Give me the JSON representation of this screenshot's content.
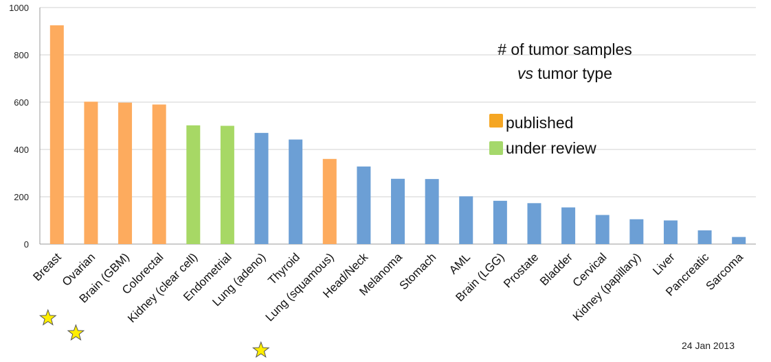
{
  "chart_data": {
    "type": "bar",
    "title_lines": [
      "# of tumor samples",
      "vs tumor type"
    ],
    "title_emphasis": "vs",
    "ylim": [
      0,
      1000
    ],
    "yticks": [
      0,
      200,
      400,
      600,
      800,
      1000
    ],
    "grid": true,
    "legend": [
      {
        "label": "published",
        "color": "#F5A623"
      },
      {
        "label": "under review",
        "color": "#A5D86B"
      }
    ],
    "colors": {
      "published": "#FDAB5E",
      "under_review": "#A7D865",
      "other": "#6C9FD5"
    },
    "categories": [
      "Breast",
      "Ovarian",
      "Brain (GBM)",
      "Colorectal",
      "Kidney (clear cell)",
      "Endometrial",
      "Lung (adeno)",
      "Thyroid",
      "Lung (squamous)",
      "Head/Neck",
      "Melanoma",
      "Stomach",
      "AML",
      "Brain (LGG)",
      "Prostate",
      "Bladder",
      "Cervical",
      "Kidney (papillary)",
      "Liver",
      "Pancreatic",
      "Sarcoma"
    ],
    "values": [
      925,
      602,
      598,
      590,
      502,
      500,
      470,
      442,
      360,
      328,
      276,
      275,
      202,
      183,
      173,
      155,
      123,
      105,
      100,
      58,
      30
    ],
    "status": [
      "published",
      "published",
      "published",
      "published",
      "under_review",
      "under_review",
      "other",
      "other",
      "published",
      "other",
      "other",
      "other",
      "other",
      "other",
      "other",
      "other",
      "other",
      "other",
      "other",
      "other",
      "other"
    ],
    "starred_categories": [
      "Breast",
      "Ovarian",
      "Lung (squamous)"
    ]
  },
  "annotations": {
    "date": "24 Jan 2013",
    "star_color": "#FFEE00"
  }
}
